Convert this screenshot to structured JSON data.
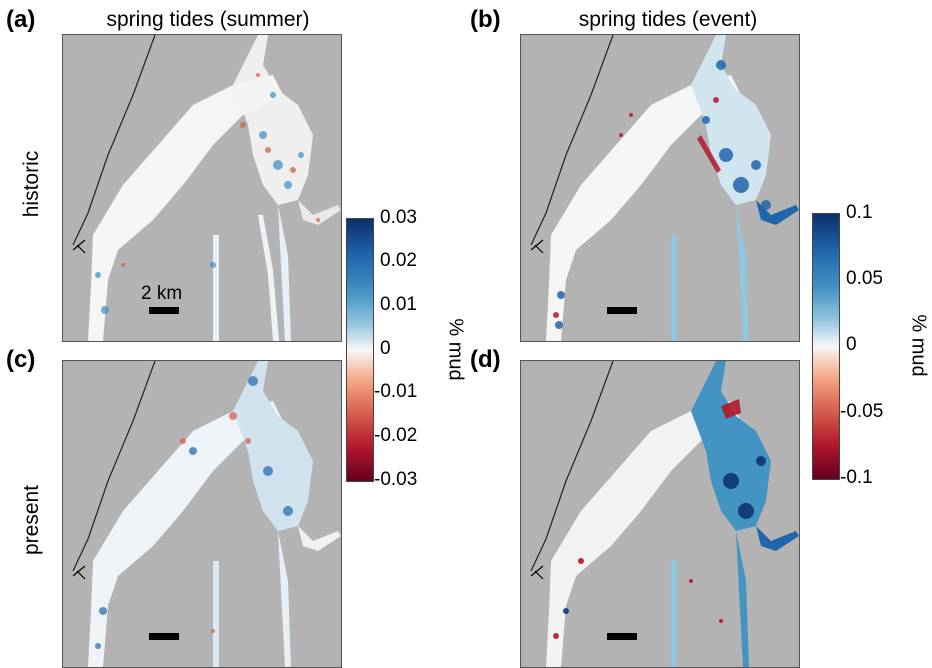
{
  "columns": [
    "spring tides (summer)",
    "spring tides (event)"
  ],
  "rows": [
    "historic",
    "present"
  ],
  "panels": [
    {
      "id": "a",
      "label": "(a)"
    },
    {
      "id": "b",
      "label": "(b)"
    },
    {
      "id": "c",
      "label": "(c)"
    },
    {
      "id": "d",
      "label": "(d)"
    }
  ],
  "colorbar_left": {
    "label": "% mud",
    "ticks": [
      "0.03",
      "0.02",
      "0.01",
      "0",
      "-0.01",
      "-0.02",
      "-0.03"
    ]
  },
  "colorbar_right": {
    "label": "% mud",
    "ticks": [
      "0.1",
      "0.05",
      "0",
      "-0.05",
      "-0.1"
    ]
  },
  "scalebar_label": "2 km",
  "colors": {
    "land": "#b3b3b3",
    "water_neutral": "#f7f7f7",
    "positive": "#2166ac",
    "negative": "#b2182b"
  }
}
